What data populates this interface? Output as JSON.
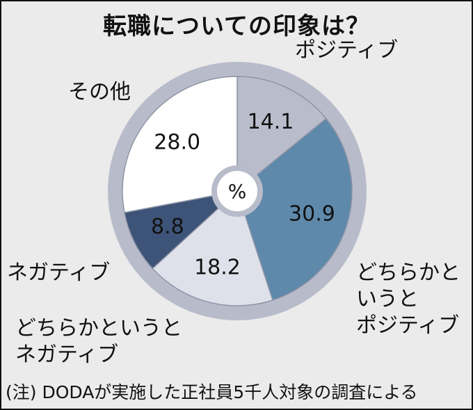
{
  "chart_data": {
    "type": "pie",
    "title": "転職についての印象は？",
    "center_label": "%",
    "categories": [
      "ポジティブ",
      "どちらかというとポジティブ",
      "どちらかというとネガティブ",
      "ネガティブ",
      "その他"
    ],
    "display_labels": [
      "ポジティブ",
      "どちらかと\nいうと\nポジティブ",
      "どちらかというと\nネガティブ",
      "ネガティブ",
      "その他"
    ],
    "values": [
      14.1,
      30.9,
      18.2,
      8.8,
      28.0
    ],
    "value_labels": [
      "14.1",
      "30.9",
      "18.2",
      "8.8",
      "28.0"
    ],
    "colors": [
      "#b9bccb",
      "#5e89ab",
      "#dfe1ea",
      "#3d5478",
      "#ffffff"
    ],
    "ring_color": "#b8bcca",
    "legend": "none",
    "footnote": "(注) DODAが実施した正社員5千人対象の調査による"
  }
}
